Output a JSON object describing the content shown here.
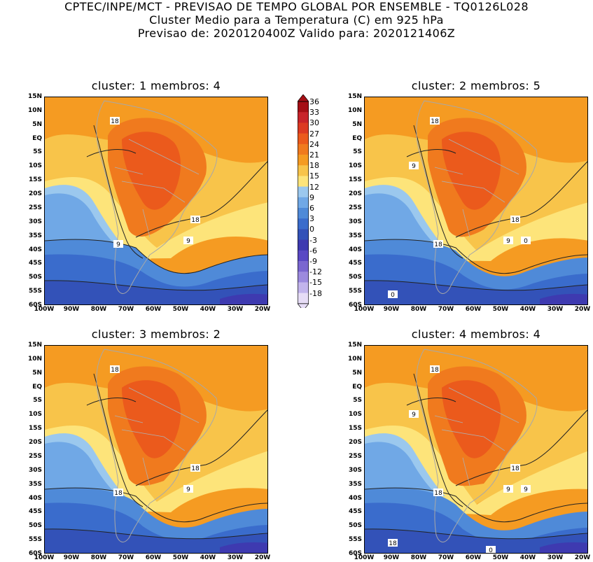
{
  "header": {
    "line1": "CPTEC/INPE/MCT - PREVISAO DE TEMPO GLOBAL POR ENSEMBLE - TQ0126L028",
    "line2": "Cluster Medio para a Temperatura (C) em 925 hPa",
    "line3": "Previsao de: 2020120400Z    Valido para: 2020121406Z"
  },
  "lat_ticks": [
    "15N",
    "10N",
    "5N",
    "EQ",
    "5S",
    "10S",
    "15S",
    "20S",
    "25S",
    "30S",
    "35S",
    "40S",
    "45S",
    "50S",
    "55S",
    "60S"
  ],
  "lon_ticks": [
    "100W",
    "90W",
    "80W",
    "70W",
    "60W",
    "50W",
    "40W",
    "30W",
    "20W"
  ],
  "colorbar": {
    "labels": [
      "36",
      "33",
      "30",
      "27",
      "24",
      "21",
      "18",
      "15",
      "12",
      "9",
      "6",
      "3",
      "0",
      "-3",
      "-6",
      "-9",
      "-12",
      "-15",
      "-18"
    ],
    "colors": [
      "#a50f15",
      "#c8242a",
      "#dc3a22",
      "#eb5a1c",
      "#f07a1e",
      "#f59b22",
      "#f8c44a",
      "#fde47a",
      "#9bc8ee",
      "#70a8e6",
      "#4f8ad8",
      "#3a6ccc",
      "#3352b8",
      "#3e3ab0",
      "#5a48c4",
      "#7a66d0",
      "#9c8ade",
      "#c2b4ec",
      "#e6dcf6"
    ]
  },
  "panels": [
    {
      "title": "cluster: 1   membros: 4",
      "contour_labels": [
        "18",
        "18",
        "9",
        "9"
      ]
    },
    {
      "title": "cluster: 2   membros: 5",
      "contour_labels": [
        "18",
        "18",
        "18",
        "9",
        "9",
        "0",
        "0"
      ]
    },
    {
      "title": "cluster: 3   membros: 2",
      "contour_labels": [
        "18",
        "18",
        "18",
        "9"
      ]
    },
    {
      "title": "cluster: 4   membros: 4",
      "contour_labels": [
        "18",
        "18",
        "18",
        "9",
        "9",
        "9",
        "18",
        "0"
      ]
    }
  ]
}
